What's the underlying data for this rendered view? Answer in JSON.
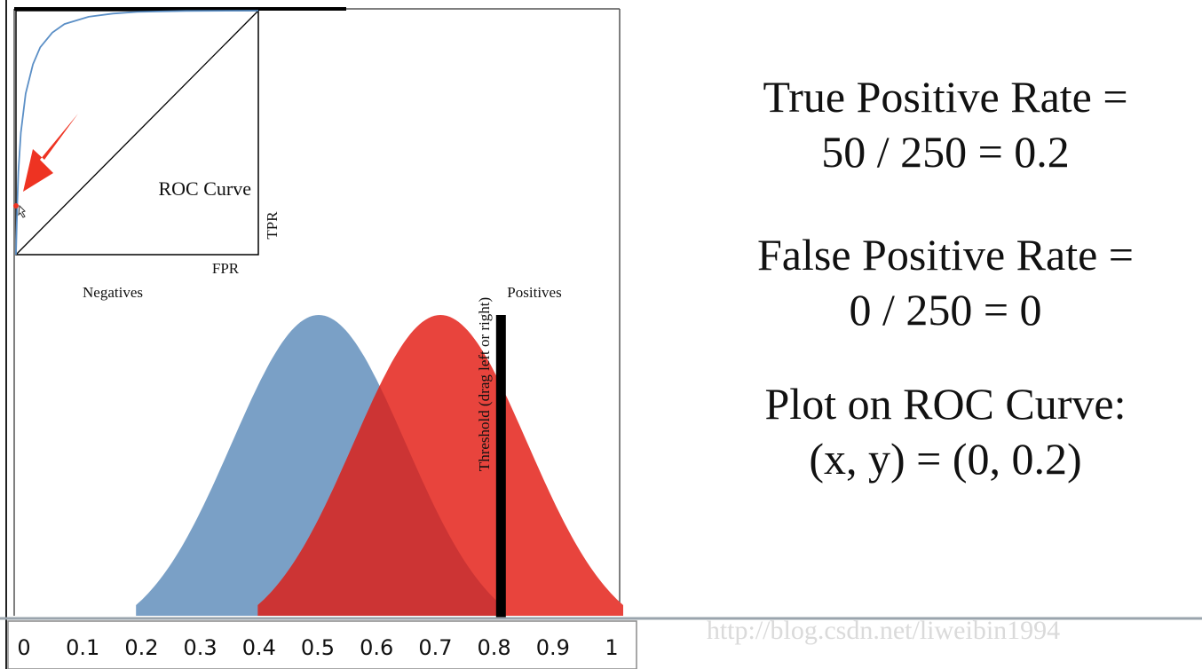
{
  "roc_inset": {
    "label": "ROC Curve",
    "xlabel": "FPR",
    "ylabel": "TPR"
  },
  "distribution": {
    "negatives_label": "Negatives",
    "positives_label": "Positives",
    "threshold_label": "Threshold (drag left or right)"
  },
  "axis": {
    "ticks": [
      "0",
      "0.1",
      "0.2",
      "0.3",
      "0.4",
      "0.5",
      "0.6",
      "0.7",
      "0.8",
      "0.9",
      "1"
    ]
  },
  "readout": {
    "tpr_line1": "True Positive Rate =",
    "tpr_line2": "50 / 250 = 0.2",
    "fpr_line1": "False Positive Rate =",
    "fpr_line2": "0 / 250 = 0",
    "plot_line1": "Plot on ROC Curve:",
    "plot_line2": "(x, y) = (0, 0.2)"
  },
  "watermark": "http://blog.csdn.net/liweibin1994",
  "colors": {
    "negatives": "#7aa0c6",
    "positives": "#e8443d",
    "overlap": "#cc3434",
    "roc_curve": "#5b8fc6",
    "threshold": "#000000",
    "arrow": "#ee3322"
  },
  "chart_data": [
    {
      "type": "area",
      "x_axis_ticks": [
        0,
        0.1,
        0.2,
        0.3,
        0.4,
        0.5,
        0.6,
        0.7,
        0.8,
        0.9,
        1
      ],
      "xlim": [
        0,
        1
      ],
      "series": [
        {
          "name": "Negatives",
          "mean": 0.5,
          "range": [
            0.2,
            0.8
          ],
          "count": 250
        },
        {
          "name": "Positives",
          "mean": 0.7,
          "range": [
            0.4,
            1.0
          ],
          "count": 250
        }
      ],
      "threshold": 0.8
    },
    {
      "type": "line",
      "title": "ROC Curve",
      "xlabel": "FPR",
      "ylabel": "TPR",
      "xlim": [
        0,
        1
      ],
      "ylim": [
        0,
        1
      ],
      "curve": {
        "x": [
          0,
          0.005,
          0.01,
          0.02,
          0.04,
          0.07,
          0.1,
          0.15,
          0.2,
          0.3,
          0.4,
          0.5,
          0.7,
          1.0
        ],
        "y": [
          0,
          0.2,
          0.34,
          0.5,
          0.66,
          0.78,
          0.85,
          0.91,
          0.945,
          0.975,
          0.988,
          0.995,
          0.999,
          1.0
        ]
      },
      "diagonal": {
        "x": [
          0,
          1
        ],
        "y": [
          0,
          1
        ]
      },
      "current_point": {
        "x": 0,
        "y": 0.2
      }
    }
  ]
}
